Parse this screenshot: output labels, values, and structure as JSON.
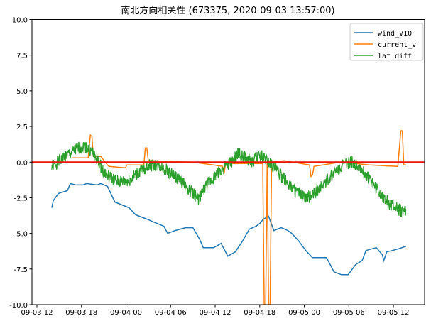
{
  "chart_data": {
    "type": "line",
    "title": "南北方向相关性 (673375, 2020-09-03 13:57:00)",
    "xlabel": "",
    "ylabel": "",
    "x_units": "hours since 2020-09-03 12:00",
    "xlim": [
      -0.67,
      52.2
    ],
    "ylim": [
      -10.0,
      10.0
    ],
    "x_ticks": [
      {
        "value": 0,
        "label": "09-03 12"
      },
      {
        "value": 6,
        "label": "09-03 18"
      },
      {
        "value": 12,
        "label": "09-04 00"
      },
      {
        "value": 18,
        "label": "09-04 06"
      },
      {
        "value": 24,
        "label": "09-04 12"
      },
      {
        "value": 30,
        "label": "09-04 18"
      },
      {
        "value": 36,
        "label": "09-05 00"
      },
      {
        "value": 42,
        "label": "09-05 06"
      },
      {
        "value": 48,
        "label": "09-05 12"
      }
    ],
    "y_ticks": [
      {
        "value": 10,
        "label": "10.0"
      },
      {
        "value": 7.5,
        "label": "7.5"
      },
      {
        "value": 5,
        "label": "5.0"
      },
      {
        "value": 2.5,
        "label": "2.5"
      },
      {
        "value": 0,
        "label": "0.0"
      },
      {
        "value": -2.5,
        "label": "-2.5"
      },
      {
        "value": -5,
        "label": "-5.0"
      },
      {
        "value": -7.5,
        "label": "-7.5"
      },
      {
        "value": -10,
        "label": "-10.0"
      }
    ],
    "grid": false,
    "legend_position": "top-right",
    "hline": {
      "y": 0,
      "color": "#e8170c"
    },
    "series": [
      {
        "name": "wind_V10",
        "color": "#1f77b4",
        "x": [
          2.0,
          2.2,
          2.9,
          4.1,
          4.5,
          5.2,
          6.2,
          6.7,
          8.1,
          8.6,
          9.5,
          10.5,
          12.4,
          13.3,
          14.8,
          15.7,
          17.1,
          17.6,
          18.6,
          20.0,
          21.0,
          21.9,
          22.4,
          23.8,
          24.8,
          25.7,
          26.7,
          27.6,
          28.6,
          29.5,
          30.0,
          30.5,
          31.2,
          31.9,
          32.9,
          33.8,
          34.3,
          35.2,
          36.2,
          37.1,
          39.0,
          40.0,
          41.0,
          41.9,
          42.9,
          43.8,
          44.3,
          45.7,
          46.5,
          46.7,
          47.1,
          48.6,
          49.7
        ],
        "y": [
          -3.2,
          -2.7,
          -2.2,
          -2.0,
          -1.5,
          -1.6,
          -1.6,
          -1.5,
          -1.6,
          -1.5,
          -1.7,
          -2.8,
          -3.2,
          -3.7,
          -4.0,
          -4.2,
          -4.5,
          -5.0,
          -4.8,
          -4.6,
          -4.6,
          -5.4,
          -6.0,
          -6.0,
          -5.7,
          -6.6,
          -6.3,
          -5.6,
          -4.7,
          -4.5,
          -4.3,
          -4.0,
          -3.8,
          -4.8,
          -4.6,
          -4.8,
          -5.0,
          -5.5,
          -6.2,
          -6.7,
          -6.7,
          -7.7,
          -7.9,
          -7.9,
          -7.2,
          -6.9,
          -6.2,
          -6.0,
          -6.5,
          -6.9,
          -6.3,
          -6.1,
          -5.9
        ]
      },
      {
        "name": "current_v",
        "color": "#ff7f0e",
        "x": [
          4.7,
          6.9,
          7.2,
          7.4,
          7.6,
          8.6,
          9.5,
          9.7,
          11.9,
          12.1,
          14.4,
          14.6,
          14.8,
          15.0,
          15.3,
          20.9,
          23.8,
          25.0,
          25.2,
          25.4,
          30.4,
          30.6,
          30.8,
          31.0,
          31.2,
          31.4,
          31.6,
          33.3,
          36.7,
          36.9,
          37.1,
          37.3,
          40.9,
          44.8,
          48.6,
          49.0,
          49.2,
          49.4,
          49.7
        ],
        "y": [
          0.3,
          0.3,
          1.9,
          1.8,
          0.4,
          0.4,
          -0.2,
          -0.3,
          -0.4,
          -0.2,
          -0.2,
          1.0,
          1.0,
          0.1,
          0.1,
          0.0,
          -0.2,
          -0.3,
          -0.8,
          -0.1,
          -0.1,
          -10,
          -10,
          0.0,
          -10,
          -10,
          0.0,
          0.1,
          -0.2,
          -1.0,
          -0.9,
          -0.3,
          0.0,
          -0.2,
          -0.3,
          2.2,
          2.2,
          -0.2,
          -0.2
        ]
      },
      {
        "name": "lat_diff",
        "color": "#2ca02c",
        "x": [
          2.0,
          3.8,
          5.7,
          6.5,
          7.6,
          8.6,
          9.5,
          11.0,
          12.4,
          13.8,
          15.2,
          16.7,
          18.1,
          19.5,
          21.0,
          21.7,
          22.9,
          24.3,
          25.2,
          26.2,
          27.1,
          28.1,
          29.0,
          30.0,
          30.9,
          31.9,
          33.3,
          34.8,
          36.2,
          37.1,
          38.6,
          40.0,
          41.0,
          42.4,
          43.3,
          44.8,
          46.2,
          47.6,
          49.0,
          49.7
        ],
        "y": [
          -0.3,
          0.4,
          1.0,
          1.1,
          0.6,
          -0.3,
          -1.0,
          -1.4,
          -1.3,
          -0.7,
          -0.2,
          -0.3,
          -0.8,
          -1.4,
          -2.2,
          -2.6,
          -1.6,
          -0.8,
          -0.4,
          0.0,
          0.6,
          0.3,
          0.0,
          0.5,
          0.2,
          -0.3,
          -1.2,
          -2.0,
          -2.6,
          -2.3,
          -1.5,
          -0.8,
          -0.3,
          0.0,
          -0.3,
          -1.2,
          -2.2,
          -3.0,
          -3.4,
          -3.5
        ]
      }
    ]
  }
}
